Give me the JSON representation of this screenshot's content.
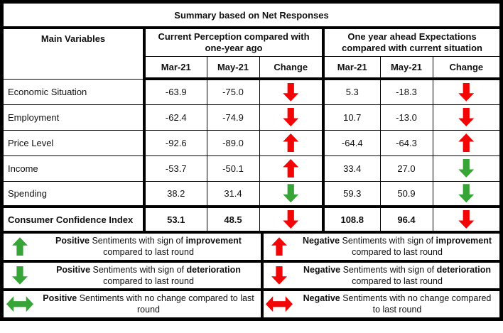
{
  "colors": {
    "red": "#F40505",
    "green": "#37A437"
  },
  "title": "Summary based on Net Responses",
  "table": {
    "main_col_header": "Main Variables",
    "group_cp": "Current Perception compared with one-year ago",
    "group_exp": "One year ahead Expectations compared with current situation",
    "sub_mar": "Mar-21",
    "sub_may": "May-21",
    "sub_change": "Change",
    "rows": [
      {
        "label": "Economic Situation",
        "cp_mar": "-63.9",
        "cp_may": "-75.0",
        "cp_change": {
          "dir": "down",
          "color": "red"
        },
        "exp_mar": "5.3",
        "exp_may": "-18.3",
        "exp_change": {
          "dir": "down",
          "color": "red"
        }
      },
      {
        "label": "Employment",
        "cp_mar": "-62.4",
        "cp_may": "-74.9",
        "cp_change": {
          "dir": "down",
          "color": "red"
        },
        "exp_mar": "10.7",
        "exp_may": "-13.0",
        "exp_change": {
          "dir": "down",
          "color": "red"
        }
      },
      {
        "label": "Price Level",
        "cp_mar": "-92.6",
        "cp_may": "-89.0",
        "cp_change": {
          "dir": "up",
          "color": "red"
        },
        "exp_mar": "-64.4",
        "exp_may": "-64.3",
        "exp_change": {
          "dir": "up",
          "color": "red"
        }
      },
      {
        "label": "Income",
        "cp_mar": "-53.7",
        "cp_may": "-50.1",
        "cp_change": {
          "dir": "up",
          "color": "red"
        },
        "exp_mar": "33.4",
        "exp_may": "27.0",
        "exp_change": {
          "dir": "down",
          "color": "green"
        }
      },
      {
        "label": "Spending",
        "cp_mar": "38.2",
        "cp_may": "31.4",
        "cp_change": {
          "dir": "down",
          "color": "green"
        },
        "exp_mar": "59.3",
        "exp_may": "50.9",
        "exp_change": {
          "dir": "down",
          "color": "green"
        }
      }
    ],
    "summary_row": {
      "label": "Consumer Confidence Index",
      "cp_mar": "53.1",
      "cp_may": "48.5",
      "cp_change": {
        "dir": "down",
        "color": "red"
      },
      "exp_mar": "108.8",
      "exp_may": "96.4",
      "exp_change": {
        "dir": "down",
        "color": "red"
      }
    }
  },
  "legend": {
    "positive": [
      {
        "arrow": {
          "dir": "up",
          "color": "green"
        },
        "segments": [
          {
            "t": "Positive",
            "b": true
          },
          {
            "t": " Sentiments with sign of ",
            "b": false
          },
          {
            "t": "improvement",
            "b": true
          },
          {
            "t": " compared to last round",
            "b": false
          }
        ]
      },
      {
        "arrow": {
          "dir": "down",
          "color": "green"
        },
        "segments": [
          {
            "t": "Positive",
            "b": true
          },
          {
            "t": " Sentiments with sign of ",
            "b": false
          },
          {
            "t": "deterioration",
            "b": true
          },
          {
            "t": " compared to last round",
            "b": false
          }
        ]
      },
      {
        "arrow": {
          "dir": "leftright",
          "color": "green"
        },
        "segments": [
          {
            "t": "Positive",
            "b": true
          },
          {
            "t": " Sentiments with no change compared to last round",
            "b": false
          }
        ]
      }
    ],
    "negative": [
      {
        "arrow": {
          "dir": "up",
          "color": "red"
        },
        "segments": [
          {
            "t": "Negative",
            "b": true
          },
          {
            "t": " Sentiments with sign of ",
            "b": false
          },
          {
            "t": "improvement",
            "b": true
          },
          {
            "t": " compared to last round",
            "b": false
          }
        ]
      },
      {
        "arrow": {
          "dir": "down",
          "color": "red"
        },
        "segments": [
          {
            "t": "Negative",
            "b": true
          },
          {
            "t": " Sentiments with sign of ",
            "b": false
          },
          {
            "t": "deterioration",
            "b": true
          },
          {
            "t": " compared to last round",
            "b": false
          }
        ]
      },
      {
        "arrow": {
          "dir": "leftright",
          "color": "red"
        },
        "segments": [
          {
            "t": "Negative",
            "b": true
          },
          {
            "t": " Sentiments with no change compared to last round",
            "b": false
          }
        ]
      }
    ]
  },
  "chart_data": {
    "type": "table",
    "title": "Summary based on Net Responses",
    "column_groups": [
      {
        "label": "Current Perception compared with one-year ago",
        "columns": [
          "Mar-21",
          "May-21",
          "Change"
        ]
      },
      {
        "label": "One year ahead Expectations compared with current situation",
        "columns": [
          "Mar-21",
          "May-21",
          "Change"
        ]
      }
    ],
    "row_header": "Main Variables",
    "rows": [
      {
        "variable": "Economic Situation",
        "cp_mar21": -63.9,
        "cp_may21": -75.0,
        "cp_change": "red-down",
        "exp_mar21": 5.3,
        "exp_may21": -18.3,
        "exp_change": "red-down"
      },
      {
        "variable": "Employment",
        "cp_mar21": -62.4,
        "cp_may21": -74.9,
        "cp_change": "red-down",
        "exp_mar21": 10.7,
        "exp_may21": -13.0,
        "exp_change": "red-down"
      },
      {
        "variable": "Price Level",
        "cp_mar21": -92.6,
        "cp_may21": -89.0,
        "cp_change": "red-up",
        "exp_mar21": -64.4,
        "exp_may21": -64.3,
        "exp_change": "red-up"
      },
      {
        "variable": "Income",
        "cp_mar21": -53.7,
        "cp_may21": -50.1,
        "cp_change": "red-up",
        "exp_mar21": 33.4,
        "exp_may21": 27.0,
        "exp_change": "green-down"
      },
      {
        "variable": "Spending",
        "cp_mar21": 38.2,
        "cp_may21": 31.4,
        "cp_change": "green-down",
        "exp_mar21": 59.3,
        "exp_may21": 50.9,
        "exp_change": "green-down"
      },
      {
        "variable": "Consumer Confidence Index",
        "cp_mar21": 53.1,
        "cp_may21": 48.5,
        "cp_change": "red-down",
        "exp_mar21": 108.8,
        "exp_may21": 96.4,
        "exp_change": "red-down"
      }
    ],
    "legend": [
      {
        "icon": "green-up-arrow",
        "meaning": "Positive Sentiments with sign of improvement compared to last round"
      },
      {
        "icon": "red-up-arrow",
        "meaning": "Negative Sentiments with sign of improvement compared to last round"
      },
      {
        "icon": "green-down-arrow",
        "meaning": "Positive Sentiments with sign of deterioration compared to last round"
      },
      {
        "icon": "red-down-arrow",
        "meaning": "Negative Sentiments with sign of deterioration compared to last round"
      },
      {
        "icon": "green-leftright-arrow",
        "meaning": "Positive Sentiments with no change compared to last round"
      },
      {
        "icon": "red-leftright-arrow",
        "meaning": "Negative Sentiments with no change compared to last round"
      }
    ]
  }
}
